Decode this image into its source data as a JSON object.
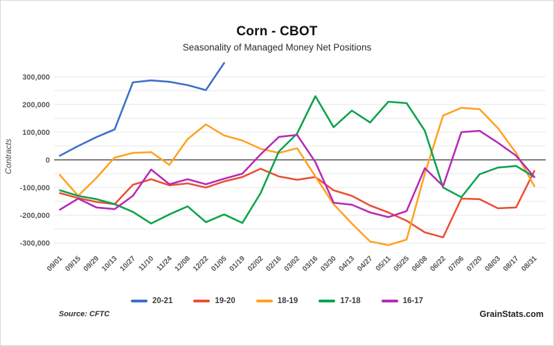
{
  "chart_data": {
    "type": "line",
    "title": "Corn - CBOT",
    "subtitle": "Seasonality of Managed Money Net Positions",
    "ylabel": "Contracts",
    "x_labels": [
      "09/01",
      "09/15",
      "09/29",
      "10/13",
      "10/27",
      "11/10",
      "11/24",
      "12/08",
      "12/22",
      "01/05",
      "01/19",
      "02/02",
      "02/16",
      "03/02",
      "03/16",
      "03/30",
      "04/13",
      "04/27",
      "05/11",
      "05/25",
      "06/08",
      "06/22",
      "07/06",
      "07/20",
      "08/03",
      "08/17",
      "08/31"
    ],
    "y_ticks": [
      300000,
      200000,
      100000,
      0,
      -100000,
      -200000,
      -300000
    ],
    "ylim": [
      -305000,
      355000
    ],
    "grid_minor_step": 50000,
    "zero_line": true,
    "legend_position": "bottom",
    "series": [
      {
        "name": "20-21",
        "color": "#3D6FC7",
        "values": [
          15000,
          50000,
          82000,
          110000,
          280000,
          287000,
          282000,
          270000,
          252000,
          350000,
          null,
          null,
          null,
          null,
          null,
          null,
          null,
          null,
          null,
          null,
          null,
          null,
          null,
          null,
          null,
          null,
          null
        ]
      },
      {
        "name": "19-20",
        "color": "#EA4E35",
        "values": [
          -120000,
          -138000,
          -152000,
          -160000,
          -90000,
          -70000,
          -92000,
          -85000,
          -100000,
          -78000,
          -62000,
          -32000,
          -60000,
          -72000,
          -62000,
          -110000,
          -130000,
          -165000,
          -190000,
          -220000,
          -262000,
          -280000,
          -140000,
          -142000,
          -175000,
          -172000,
          -40000
        ]
      },
      {
        "name": "18-19",
        "color": "#FFA21F",
        "values": [
          -55000,
          -130000,
          -65000,
          8000,
          25000,
          28000,
          -18000,
          75000,
          128000,
          88000,
          70000,
          40000,
          25000,
          42000,
          -60000,
          -160000,
          -230000,
          -295000,
          -308000,
          -288000,
          -50000,
          160000,
          188000,
          183000,
          115000,
          25000,
          -95000
        ]
      },
      {
        "name": "17-18",
        "color": "#0CA24C",
        "values": [
          -110000,
          -130000,
          -142000,
          -160000,
          -188000,
          -230000,
          -197000,
          -168000,
          -225000,
          -197000,
          -228000,
          -120000,
          30000,
          95000,
          230000,
          118000,
          178000,
          135000,
          210000,
          205000,
          105000,
          -100000,
          -135000,
          -52000,
          -28000,
          -22000,
          -62000
        ]
      },
      {
        "name": "16-17",
        "color": "#B62AB5",
        "values": [
          -180000,
          -140000,
          -172000,
          -178000,
          -130000,
          -35000,
          -88000,
          -70000,
          -88000,
          -68000,
          -50000,
          20000,
          83000,
          90000,
          -8000,
          -155000,
          -162000,
          -190000,
          -207000,
          -185000,
          -30000,
          -95000,
          100000,
          105000,
          62000,
          15000,
          -62000
        ]
      }
    ]
  },
  "footer": {
    "source": "Source: CFTC",
    "brand": "GrainStats.com"
  }
}
